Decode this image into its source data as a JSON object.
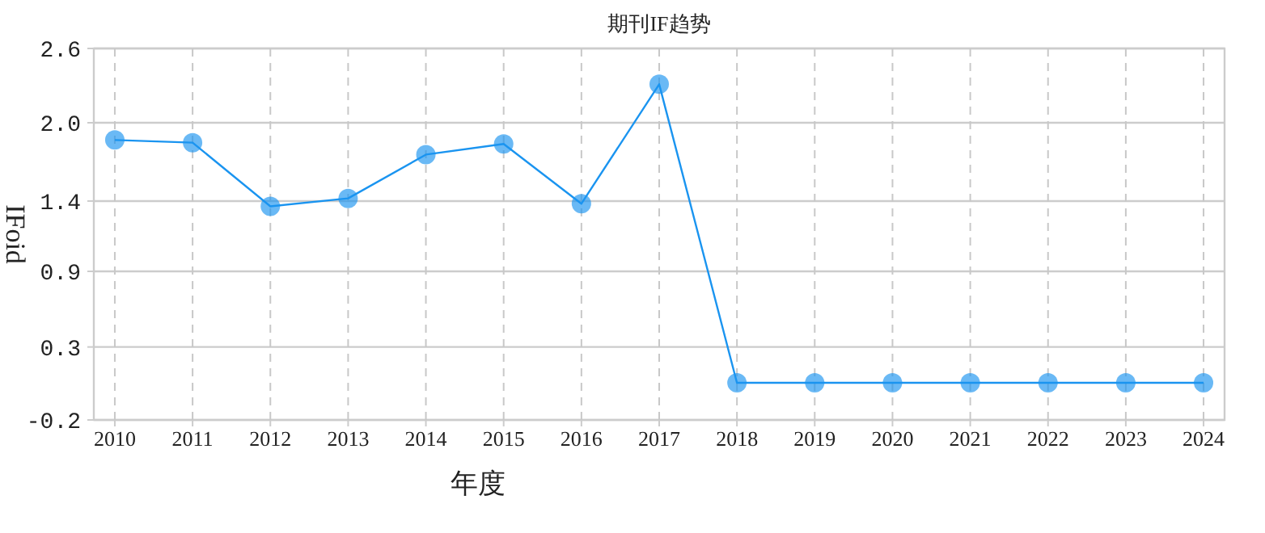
{
  "chart_data": {
    "type": "line",
    "title": "期刊IF趋势",
    "xlabel": "年度",
    "ylabel": "IFoid",
    "categories": [
      "2010",
      "2011",
      "2012",
      "2013",
      "2014",
      "2015",
      "2016",
      "2017",
      "2018",
      "2019",
      "2020",
      "2021",
      "2022",
      "2023",
      "2024"
    ],
    "series": [
      {
        "color": "#1a94f0",
        "values": [
          1.91,
          1.89,
          1.41,
          1.47,
          1.8,
          1.88,
          1.43,
          2.33,
          0.08,
          0.08,
          0.08,
          0.08,
          0.08,
          0.08,
          0.08
        ]
      }
    ],
    "ylim": [
      -0.2,
      2.6
    ],
    "yticks": [
      {
        "value": -0.2,
        "label": "-0.2"
      },
      {
        "value": 0.35,
        "label": "0.3"
      },
      {
        "value": 0.92,
        "label": "0.9"
      },
      {
        "value": 1.45,
        "label": "1.4"
      },
      {
        "value": 2.04,
        "label": "2.0"
      },
      {
        "value": 2.6,
        "label": "2.6"
      }
    ],
    "grid": true,
    "marker": "circle",
    "line_style": "solid"
  }
}
